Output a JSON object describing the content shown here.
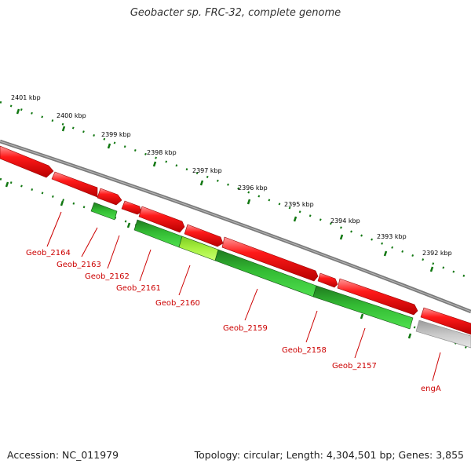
{
  "title": "Geobacter sp. FRC-32, complete genome",
  "accession_text": "Accession: NC_011979",
  "summary_text": "Topology: circular; Length: 4,304,501 bp; Genes: 3,855",
  "colors": {
    "forward_strand": "#ee0000",
    "reverse_strand": "#2aa82a",
    "highlight_gene": "#99ee33",
    "rna_gene": "#c0c0c0",
    "backbone": "#808080",
    "ticks": "#117711",
    "gene_label": "#cc0000"
  },
  "ruler": {
    "unit": "kbp",
    "labels": [
      "2401 kbp",
      "2400 kbp",
      "2399 kbp",
      "2398 kbp",
      "2397 kbp",
      "2396 kbp",
      "2395 kbp",
      "2394 kbp",
      "2393 kbp",
      "2392 kbp"
    ]
  },
  "genes": [
    {
      "name": "Geob_2164",
      "strand": "forward"
    },
    {
      "name": "Geob_2163",
      "strand": "reverse"
    },
    {
      "name": "Geob_2162",
      "strand": "forward"
    },
    {
      "name": "Geob_2161",
      "strand": "reverse"
    },
    {
      "name": "Geob_2160",
      "strand": "reverse"
    },
    {
      "name": "Geob_2159",
      "strand": "forward"
    },
    {
      "name": "Geob_2158",
      "strand": "forward"
    },
    {
      "name": "Geob_2157",
      "strand": "reverse"
    },
    {
      "name": "engA",
      "strand": "reverse"
    }
  ]
}
